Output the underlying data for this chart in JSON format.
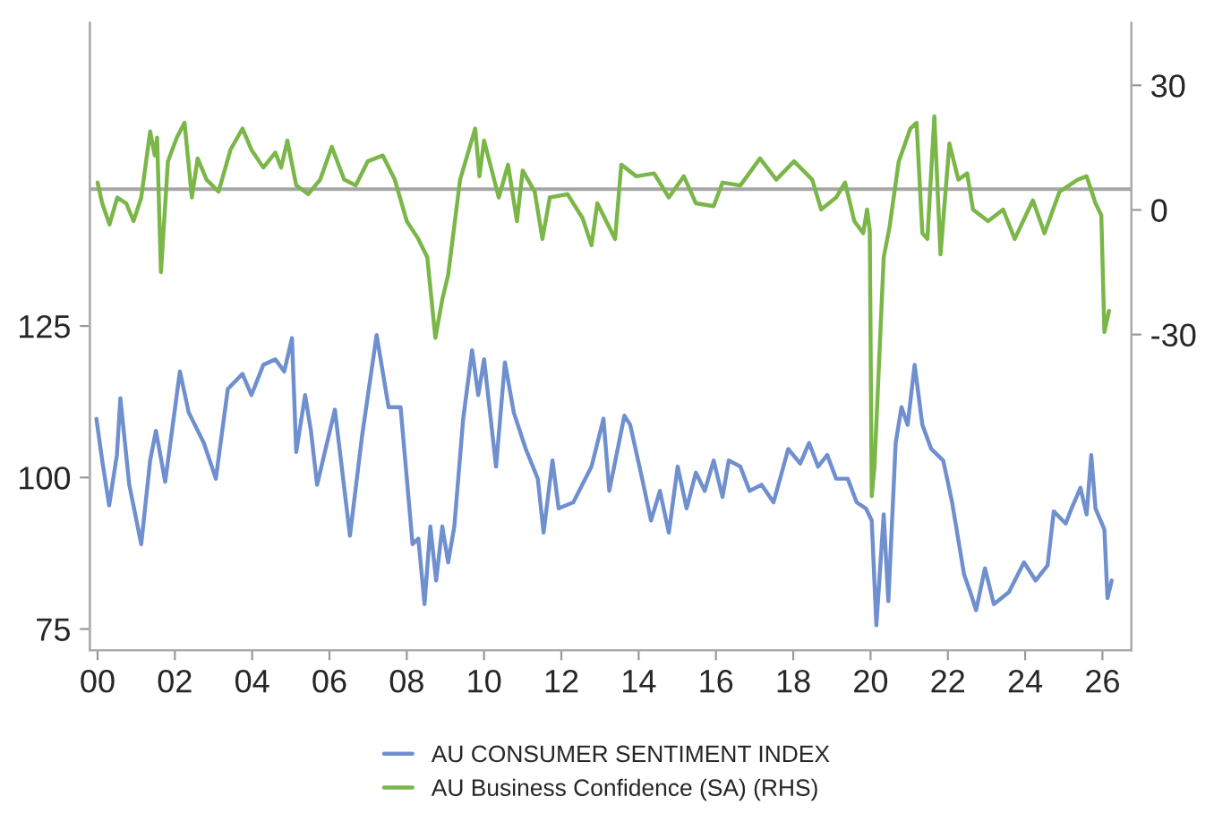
{
  "chart_data": {
    "type": "line",
    "xlim": [
      1999.8,
      2026.75
    ],
    "xticks": [
      {
        "value": 2000,
        "label": "00"
      },
      {
        "value": 2002,
        "label": "02"
      },
      {
        "value": 2004,
        "label": "04"
      },
      {
        "value": 2006,
        "label": "06"
      },
      {
        "value": 2008,
        "label": "08"
      },
      {
        "value": 2010,
        "label": "10"
      },
      {
        "value": 2012,
        "label": "12"
      },
      {
        "value": 2014,
        "label": "14"
      },
      {
        "value": 2016,
        "label": "16"
      },
      {
        "value": 2018,
        "label": "18"
      },
      {
        "value": 2020,
        "label": "20"
      },
      {
        "value": 2022,
        "label": "22"
      },
      {
        "value": 2024,
        "label": "24"
      },
      {
        "value": 2026,
        "label": "26"
      }
    ],
    "ylim": [
      71.5,
      175
    ],
    "yticks": [
      75,
      100,
      125
    ],
    "y2lim": [
      -106,
      45
    ],
    "y2ticks": [
      -30,
      0,
      30
    ],
    "legend": "bottom",
    "grid": false,
    "marker": "none",
    "line_style": "solid",
    "ref_lines": [
      {
        "axis": "y2",
        "value": 5,
        "color": "#a6a6a6"
      }
    ],
    "series": [
      {
        "name": "AU CONSUMER SENTIMENT INDEX",
        "color": "#6f8fcf",
        "x": [
          1999.97,
          2000.12,
          2000.3,
          2000.5,
          2000.59,
          2000.82,
          2001.13,
          2001.36,
          2001.51,
          2001.75,
          2002.13,
          2002.36,
          2002.75,
          2003.06,
          2003.37,
          2003.75,
          2003.98,
          2004.29,
          2004.6,
          2004.83,
          2005.03,
          2005.14,
          2005.37,
          2005.52,
          2005.68,
          2006.14,
          2006.53,
          2006.84,
          2007.22,
          2007.53,
          2007.84,
          2008.15,
          2008.3,
          2008.46,
          2008.61,
          2008.76,
          2008.92,
          2009.07,
          2009.23,
          2009.46,
          2009.69,
          2009.85,
          2010.0,
          2010.31,
          2010.54,
          2010.77,
          2011.08,
          2011.39,
          2011.54,
          2011.77,
          2011.93,
          2012.31,
          2012.78,
          2013.09,
          2013.24,
          2013.63,
          2013.78,
          2014.09,
          2014.32,
          2014.55,
          2014.78,
          2015.01,
          2015.24,
          2015.48,
          2015.71,
          2015.94,
          2016.17,
          2016.33,
          2016.63,
          2016.87,
          2017.18,
          2017.49,
          2017.87,
          2018.18,
          2018.41,
          2018.64,
          2018.88,
          2019.11,
          2019.41,
          2019.64,
          2019.88,
          2020.03,
          2020.15,
          2020.34,
          2020.46,
          2020.65,
          2020.8,
          2020.96,
          2021.14,
          2021.34,
          2021.57,
          2021.88,
          2022.11,
          2022.42,
          2022.58,
          2022.73,
          2022.96,
          2023.19,
          2023.58,
          2023.97,
          2024.27,
          2024.58,
          2024.74,
          2025.05,
          2025.2,
          2025.43,
          2025.59,
          2025.71,
          2025.82,
          2026.05,
          2026.13,
          2026.24
        ],
        "values": [
          109.7,
          102.8,
          95.4,
          103.7,
          113.1,
          98.8,
          89,
          102.8,
          107.7,
          99.3,
          117.5,
          110.7,
          105.7,
          99.8,
          114.6,
          117.1,
          113.6,
          118.6,
          119.5,
          117.5,
          123,
          104.2,
          113.6,
          107.7,
          98.8,
          111.2,
          90.4,
          106.7,
          123.5,
          111.6,
          111.6,
          89,
          89.9,
          79.1,
          91.9,
          83,
          91.9,
          86,
          91.9,
          109.7,
          121,
          113.6,
          119.5,
          101.8,
          119,
          110.7,
          104.7,
          99.8,
          90.9,
          102.8,
          94.9,
          95.9,
          101.8,
          109.7,
          97.8,
          110.2,
          108.7,
          99.8,
          92.9,
          97.8,
          90.9,
          101.8,
          94.9,
          100.8,
          97.8,
          102.8,
          96.8,
          102.8,
          101.8,
          97.8,
          98.8,
          95.9,
          104.7,
          102.3,
          105.7,
          101.8,
          103.7,
          99.8,
          99.8,
          95.9,
          94.9,
          92.9,
          75.6,
          93.9,
          79.6,
          105.7,
          111.6,
          108.7,
          118.6,
          108.7,
          104.7,
          102.8,
          95.9,
          84,
          81.1,
          78.1,
          85,
          79.1,
          81.1,
          86,
          83,
          85.5,
          94.4,
          92.4,
          94.9,
          98.3,
          93.9,
          103.7,
          94.9,
          91.4,
          80.1,
          83
        ]
      },
      {
        "name": "AU Business Confidence (SA) (RHS)",
        "color": "#7ab648",
        "axis": "y2",
        "x": [
          2000.0,
          2000.12,
          2000.31,
          2000.51,
          2000.74,
          2000.93,
          2001.13,
          2001.36,
          2001.48,
          2001.54,
          2001.64,
          2001.82,
          2002.05,
          2002.25,
          2002.44,
          2002.59,
          2002.82,
          2003.13,
          2003.44,
          2003.75,
          2003.98,
          2004.29,
          2004.6,
          2004.75,
          2004.91,
          2005.14,
          2005.45,
          2005.76,
          2006.06,
          2006.38,
          2006.68,
          2006.99,
          2007.38,
          2007.69,
          2008.0,
          2008.3,
          2008.53,
          2008.74,
          2008.92,
          2009.07,
          2009.38,
          2009.77,
          2009.88,
          2010.0,
          2010.38,
          2010.62,
          2010.85,
          2011.0,
          2011.31,
          2011.51,
          2011.7,
          2012.16,
          2012.55,
          2012.78,
          2012.93,
          2013.39,
          2013.55,
          2013.94,
          2014.4,
          2014.78,
          2015.17,
          2015.48,
          2015.94,
          2016.17,
          2016.63,
          2017.14,
          2017.56,
          2018.02,
          2018.49,
          2018.72,
          2019.11,
          2019.34,
          2019.58,
          2019.81,
          2019.91,
          2019.98,
          2020.03,
          2020.1,
          2020.34,
          2020.49,
          2020.73,
          2021.03,
          2021.19,
          2021.34,
          2021.47,
          2021.65,
          2021.81,
          2022.04,
          2022.27,
          2022.5,
          2022.65,
          2023.04,
          2023.43,
          2023.73,
          2024.2,
          2024.5,
          2024.89,
          2025.36,
          2025.59,
          2025.82,
          2025.97,
          2026.05,
          2026.17
        ],
        "values": [
          6.6,
          1.6,
          -3.5,
          3,
          1.6,
          -2.7,
          3,
          18.9,
          13.1,
          17.4,
          -15,
          11.7,
          17.4,
          21,
          3,
          12.4,
          7.3,
          4.4,
          14.5,
          19.6,
          14.5,
          10.2,
          13.8,
          10.2,
          16.7,
          5.9,
          3.8,
          7.3,
          15.2,
          7.3,
          5.9,
          11.7,
          13.1,
          7.3,
          -2.7,
          -7,
          -11.4,
          -30.8,
          -21.5,
          -15.7,
          7.3,
          19.6,
          8.1,
          16.7,
          3,
          10.9,
          -2.7,
          9.5,
          4.4,
          -7,
          3,
          3.8,
          -2,
          -8.5,
          1.6,
          -7,
          10.9,
          8.1,
          8.8,
          3,
          8.1,
          1.6,
          0.9,
          6.6,
          5.9,
          12.4,
          7.3,
          11.7,
          7.3,
          0.1,
          3,
          6.6,
          -2.7,
          -5.6,
          0.1,
          -5,
          -68.9,
          -62,
          -11.4,
          -4.2,
          11.7,
          19.6,
          21,
          -5.6,
          -7,
          22.5,
          -10.7,
          16,
          7.3,
          8.8,
          0.1,
          -2.7,
          0.1,
          -7,
          2.3,
          -5.6,
          4.4,
          7.3,
          8.1,
          1.6,
          -1.3,
          -29.4,
          -24.3
        ]
      }
    ]
  }
}
